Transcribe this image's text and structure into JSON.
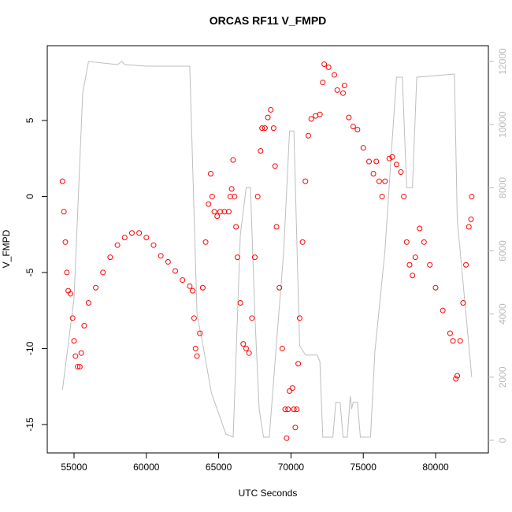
{
  "chart_data": {
    "type": "scatter",
    "title": "ORCAS RF11 V_FMPD",
    "x_label": "UTC Seconds",
    "y_label": "V_FMPD",
    "xlim": [
      53148,
      83649
    ],
    "ylim": [
      -16.87,
      9.92
    ],
    "y2lim": [
      -399,
      12499
    ],
    "xticks": [
      55000,
      60000,
      65000,
      70000,
      75000,
      80000
    ],
    "yticks": [
      -15,
      -10,
      -5,
      0,
      5
    ],
    "y2ticks": [
      0,
      2000,
      4000,
      6000,
      8000,
      10000,
      12000
    ],
    "grid": false,
    "series": [
      {
        "type": "scatter",
        "color": "#ff0000",
        "x": [
          54200,
          54300,
          54400,
          54500,
          54600,
          54750,
          54900,
          55000,
          55100,
          55250,
          55400,
          55500,
          55700,
          56000,
          56500,
          57000,
          57500,
          58000,
          58500,
          59000,
          59500,
          60000,
          60500,
          61000,
          61500,
          62000,
          62500,
          63000,
          63200,
          63300,
          63400,
          63500,
          63700,
          63900,
          64100,
          64300,
          64450,
          64550,
          64700,
          64900,
          65100,
          65400,
          65700,
          65800,
          65900,
          66000,
          66100,
          66200,
          66300,
          66500,
          66700,
          66900,
          67100,
          67300,
          67500,
          67700,
          67900,
          68000,
          68200,
          68400,
          68600,
          68800,
          68900,
          69000,
          69200,
          69400,
          69600,
          69700,
          69800,
          69900,
          70100,
          70200,
          70300,
          70400,
          70500,
          70600,
          70800,
          71000,
          71200,
          71400,
          71700,
          72000,
          72200,
          72300,
          72600,
          73000,
          73200,
          73600,
          73700,
          74000,
          74300,
          74600,
          75000,
          75400,
          75700,
          75900,
          76100,
          76300,
          76500,
          76800,
          77000,
          77300,
          77600,
          77800,
          78000,
          78200,
          78400,
          78600,
          78900,
          79200,
          79600,
          80000,
          80500,
          81000,
          81200,
          81400,
          81500,
          81700,
          81900,
          82100,
          82300,
          82450,
          82500
        ],
        "values": [
          1.0,
          -1,
          -3,
          -5,
          -6.2,
          -6.4,
          -8,
          -9.5,
          -10.5,
          -11.2,
          -11.2,
          -10.3,
          -8.5,
          -7,
          -6,
          -5,
          -4,
          -3.2,
          -2.7,
          -2.4,
          -2.4,
          -2.7,
          -3.2,
          -3.9,
          -4.3,
          -4.9,
          -5.5,
          -5.9,
          -6.2,
          -8,
          -10,
          -10.5,
          -9,
          -6,
          -3,
          -0.5,
          1.5,
          0,
          -1,
          -1.3,
          -1,
          -1,
          -1,
          0,
          0.5,
          2.4,
          0,
          -2,
          -4,
          -7,
          -9.7,
          -10,
          -10.3,
          -8,
          -4,
          0,
          3,
          4.5,
          4.5,
          5.2,
          5.7,
          4.5,
          2,
          -2,
          -6,
          -10,
          -14,
          -15.9,
          -14,
          -12.8,
          -12.6,
          -14,
          -15.2,
          -14,
          -11,
          -8,
          -3,
          1,
          4,
          5.1,
          5.3,
          5.4,
          7.5,
          8.7,
          8.5,
          8,
          7,
          6.8,
          7.3,
          5.2,
          4.6,
          4.4,
          3.2,
          2.3,
          1.5,
          2.3,
          1,
          0,
          1,
          2.5,
          2.6,
          2.1,
          1.6,
          0,
          -3,
          -4.5,
          -5.2,
          -4,
          -2.1,
          -3,
          -4.5,
          -6,
          -7.5,
          -9,
          -9.5,
          -12,
          -11.8,
          -9.5,
          -7,
          -4.5,
          -2,
          -1.5,
          0
        ]
      },
      {
        "type": "line",
        "axis": "y2",
        "color": "#bebebe",
        "x": [
          54200,
          55000,
          55600,
          56000,
          58000,
          58300,
          58500,
          60000,
          63000,
          63500,
          64000,
          64500,
          65500,
          66000,
          66500,
          66900,
          67200,
          67500,
          67800,
          68100,
          68500,
          68900,
          69500,
          69900,
          70200,
          70600,
          71000,
          71800,
          72000,
          72200,
          72900,
          73100,
          73400,
          73600,
          73900,
          74100,
          74200,
          74300,
          74600,
          74800,
          75500,
          75800,
          76500,
          77000,
          77300,
          77700,
          78000,
          78400,
          78700,
          81300,
          81500,
          82000,
          82500
        ],
        "values": [
          1600,
          4500,
          11000,
          12000,
          11900,
          12000,
          11900,
          11850,
          11850,
          4000,
          2800,
          1500,
          200,
          100,
          6500,
          8000,
          8000,
          4000,
          1000,
          100,
          100,
          2500,
          6000,
          9800,
          9800,
          3000,
          2700,
          2700,
          2500,
          100,
          100,
          1200,
          1200,
          100,
          100,
          1400,
          1000,
          1200,
          1200,
          100,
          100,
          2800,
          6000,
          9500,
          11500,
          11500,
          8000,
          8000,
          11500,
          11600,
          7000,
          4500,
          2000
        ]
      }
    ]
  }
}
